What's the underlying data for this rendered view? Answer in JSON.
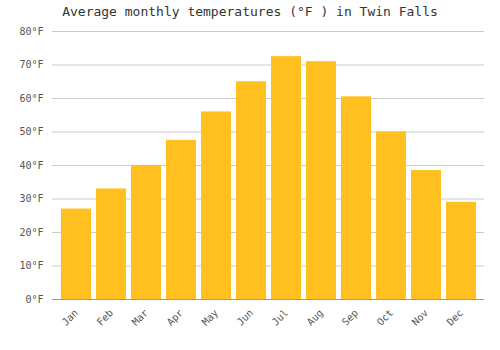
{
  "chart_data": {
    "type": "bar",
    "title": "Average monthly temperatures (°F ) in Twin Falls",
    "categories": [
      "Jan",
      "Feb",
      "Mar",
      "Apr",
      "May",
      "Jun",
      "Jul",
      "Aug",
      "Sep",
      "Oct",
      "Nov",
      "Dec"
    ],
    "values": [
      27,
      33,
      40,
      47.5,
      56,
      65,
      72.5,
      71,
      60.5,
      50,
      38.5,
      29
    ],
    "color": "#FFC020",
    "ylim": [
      0,
      80
    ],
    "yticks": [
      {
        "value": 0,
        "label": "0°F"
      },
      {
        "value": 10,
        "label": "10°F"
      },
      {
        "value": 20,
        "label": "20°F"
      },
      {
        "value": 30,
        "label": "30°F"
      },
      {
        "value": 40,
        "label": "40°F"
      },
      {
        "value": 50,
        "label": "50°F"
      },
      {
        "value": 60,
        "label": "60°F"
      },
      {
        "value": 70,
        "label": "70°F"
      },
      {
        "value": 80,
        "label": "80°F"
      }
    ],
    "grid": true
  }
}
